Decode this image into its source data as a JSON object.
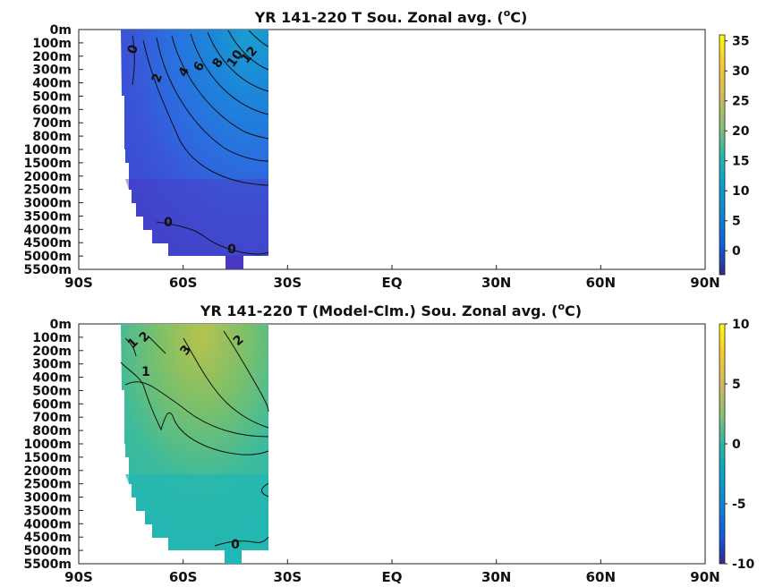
{
  "chart_data": [
    {
      "type": "heatmap",
      "title": "YR 141-220 T Sou. Zonal avg. (",
      "title_sup": "o",
      "title_end": "C)",
      "xlabel": "",
      "ylabel": "",
      "x_ticks": [
        "90S",
        "60S",
        "30S",
        "EQ",
        "30N",
        "60N",
        "90N"
      ],
      "x_tick_values": [
        -90,
        -60,
        -30,
        0,
        30,
        60,
        90
      ],
      "y_ticks": [
        "0m",
        "100m",
        "200m",
        "300m",
        "400m",
        "500m",
        "600m",
        "700m",
        "800m",
        "1000m",
        "1500m",
        "2000m",
        "2500m",
        "3000m",
        "3500m",
        "4000m",
        "4500m",
        "5000m",
        "5500m"
      ],
      "colorbar": {
        "min": -4,
        "max": 36,
        "ticks": [
          0,
          5,
          10,
          15,
          20,
          25,
          30,
          35
        ]
      },
      "contour_labels": [
        "0",
        "2",
        "4",
        "6",
        "8",
        "10",
        "12",
        "0",
        "0"
      ],
      "data_lat_range": [
        -78,
        -35
      ],
      "field_range": [
        -2,
        13
      ]
    },
    {
      "type": "heatmap",
      "title": "YR 141-220 T (Model-Clm.) Sou. Zonal avg. (",
      "title_sup": "o",
      "title_end": "C)",
      "xlabel": "",
      "ylabel": "",
      "x_ticks": [
        "90S",
        "60S",
        "30S",
        "EQ",
        "30N",
        "60N",
        "90N"
      ],
      "x_tick_values": [
        -90,
        -60,
        -30,
        0,
        30,
        60,
        90
      ],
      "y_ticks": [
        "0m",
        "100m",
        "200m",
        "300m",
        "400m",
        "500m",
        "600m",
        "700m",
        "800m",
        "1000m",
        "1500m",
        "2000m",
        "2500m",
        "3000m",
        "3500m",
        "4000m",
        "4500m",
        "5000m",
        "5500m"
      ],
      "colorbar": {
        "min": -10,
        "max": 10,
        "ticks": [
          10,
          5,
          0,
          -5,
          -10
        ]
      },
      "contour_labels": [
        "1",
        "2",
        "3",
        "2",
        "1",
        "0"
      ],
      "data_lat_range": [
        -78,
        -35
      ],
      "field_range": [
        0,
        4
      ]
    }
  ]
}
